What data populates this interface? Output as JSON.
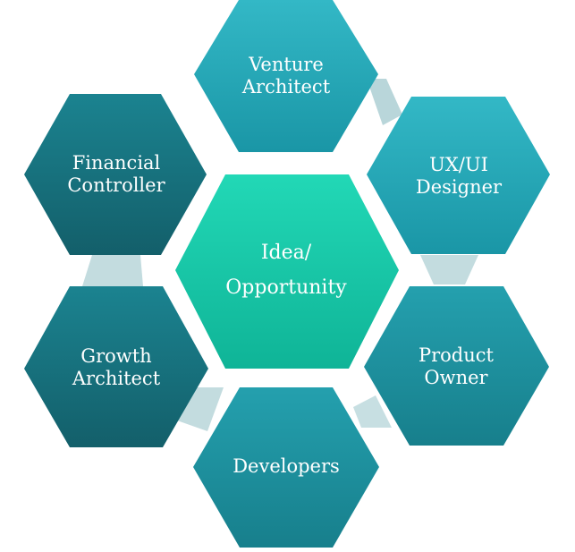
{
  "diagram": {
    "center": {
      "label_line1": "Idea/",
      "label_line2": "Opportunity"
    },
    "roles": [
      {
        "id": "venture-architect",
        "line1": "Venture",
        "line2": "Architect"
      },
      {
        "id": "ux-ui-designer",
        "line1": "UX/UI",
        "line2": "Designer"
      },
      {
        "id": "product-owner",
        "line1": "Product",
        "line2": "Owner"
      },
      {
        "id": "developers",
        "line1": "Developers",
        "line2": ""
      },
      {
        "id": "growth-architect",
        "line1": "Growth",
        "line2": "Architect"
      },
      {
        "id": "financial-controller",
        "line1": "Financial",
        "line2": "Controller"
      }
    ],
    "colors": {
      "center_top": "#1dd3b0",
      "center_bottom": "#10b89a",
      "outer_light": "#2aaebd",
      "outer_mid": "#1b8e9c",
      "outer_dark": "#16707c",
      "connector": "#b8d8dc",
      "text": "#ffffff"
    }
  }
}
